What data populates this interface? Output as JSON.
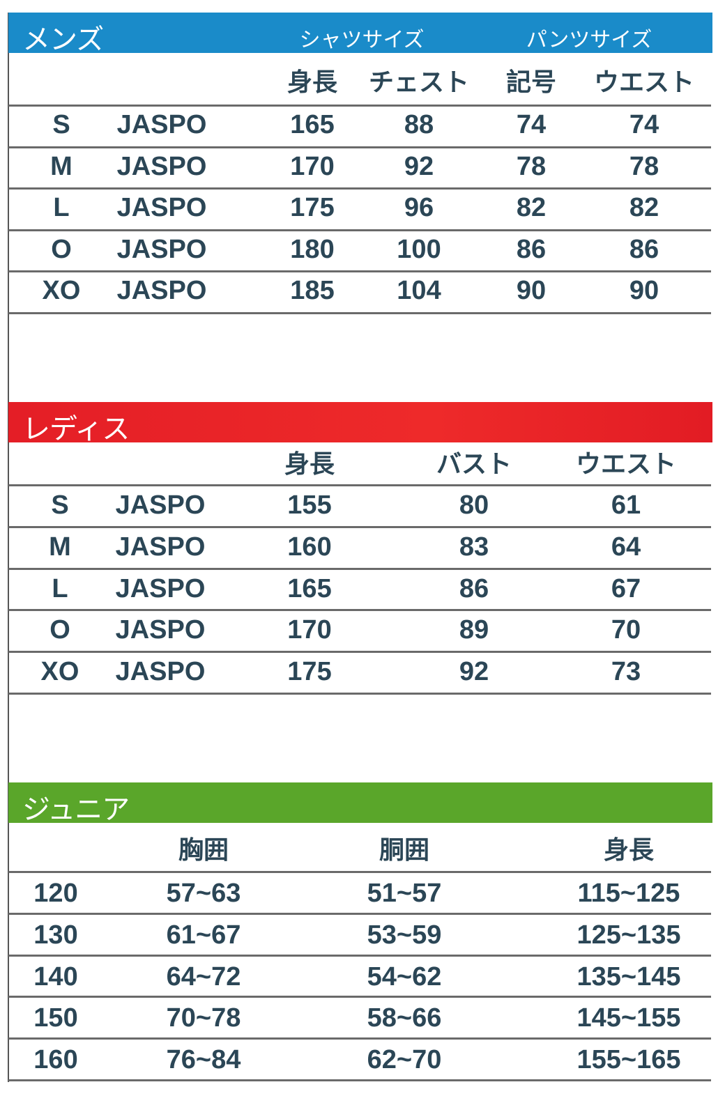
{
  "colors": {
    "mens": "#1a8bc9",
    "ladies": "#e9202a",
    "junior": "#5aa62a",
    "text": "#2b4656"
  },
  "mens": {
    "title": "メンズ",
    "group_labels": [
      "シャツサイズ",
      "パンツサイズ"
    ],
    "headers": [
      "",
      "",
      "身長",
      "チェスト",
      "記号",
      "ウエスト"
    ],
    "rows": [
      [
        "S",
        "JASPO",
        "165",
        "88",
        "74",
        "74"
      ],
      [
        "M",
        "JASPO",
        "170",
        "92",
        "78",
        "78"
      ],
      [
        "L",
        "JASPO",
        "175",
        "96",
        "82",
        "82"
      ],
      [
        "O",
        "JASPO",
        "180",
        "100",
        "86",
        "86"
      ],
      [
        "XO",
        "JASPO",
        "185",
        "104",
        "90",
        "90"
      ]
    ]
  },
  "ladies": {
    "title": "レディス",
    "headers": [
      "",
      "",
      "身長",
      "バスト",
      "ウエスト"
    ],
    "rows": [
      [
        "S",
        "JASPO",
        "155",
        "80",
        "61"
      ],
      [
        "M",
        "JASPO",
        "160",
        "83",
        "64"
      ],
      [
        "L",
        "JASPO",
        "165",
        "86",
        "67"
      ],
      [
        "O",
        "JASPO",
        "170",
        "89",
        "70"
      ],
      [
        "XO",
        "JASPO",
        "175",
        "92",
        "73"
      ]
    ]
  },
  "junior": {
    "title": "ジュニア",
    "headers": [
      "",
      "胸囲",
      "胴囲",
      "身長"
    ],
    "rows": [
      [
        "120",
        "57~63",
        "51~57",
        "115~125"
      ],
      [
        "130",
        "61~67",
        "53~59",
        "125~135"
      ],
      [
        "140",
        "64~72",
        "54~62",
        "135~145"
      ],
      [
        "150",
        "70~78",
        "58~66",
        "145~155"
      ],
      [
        "160",
        "76~84",
        "62~70",
        "155~165"
      ]
    ]
  }
}
